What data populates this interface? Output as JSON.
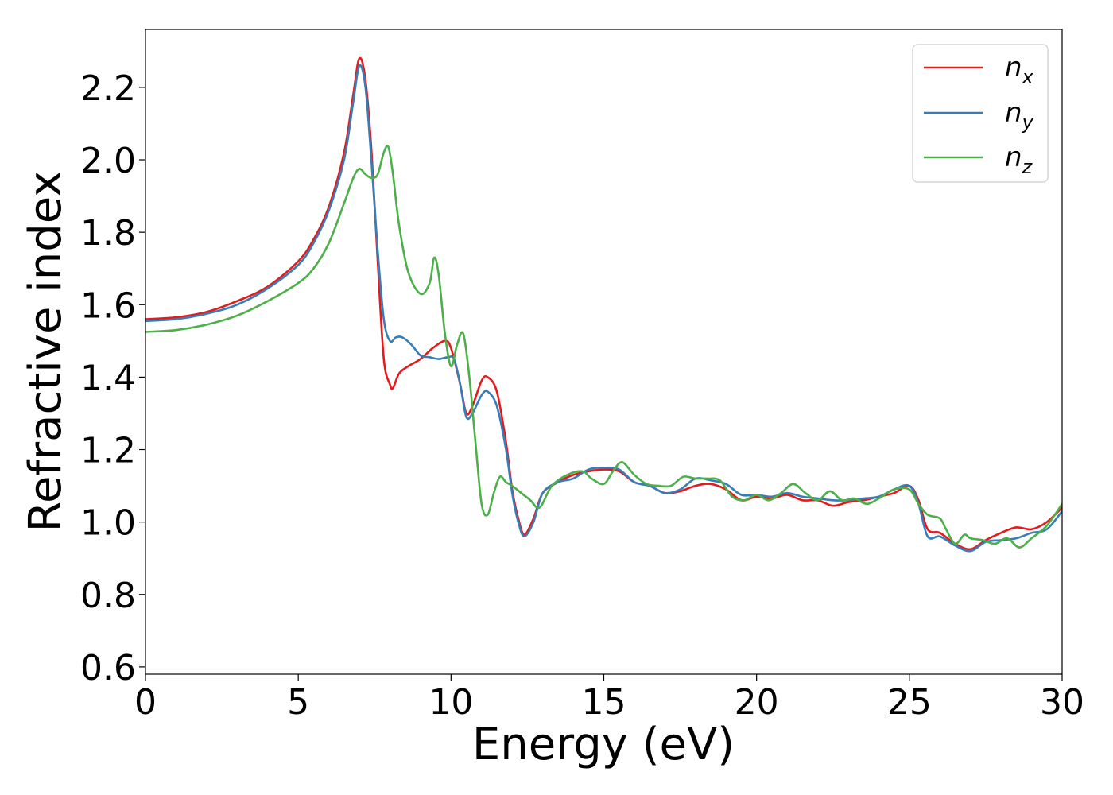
{
  "chart_data": {
    "type": "line",
    "title": "",
    "xlabel": "Energy (eV)",
    "ylabel": "Refractive index",
    "xlim": [
      0,
      30
    ],
    "ylim": [
      0.58,
      2.36
    ],
    "xticks": [
      0,
      5,
      10,
      15,
      20,
      25,
      30
    ],
    "yticks": [
      0.6,
      0.8,
      1.0,
      1.2,
      1.4,
      1.6,
      1.8,
      2.0,
      2.2
    ],
    "xtick_labels": [
      "0",
      "5",
      "10",
      "15",
      "20",
      "25",
      "30"
    ],
    "ytick_labels": [
      "0.6",
      "0.8",
      "1.0",
      "1.2",
      "1.4",
      "1.6",
      "1.8",
      "2.0",
      "2.2"
    ],
    "grid": false,
    "legend_position": "top-right",
    "series": [
      {
        "name": "n_x",
        "label_main": "n",
        "label_sub": "x",
        "color": "#e41a1c",
        "x": [
          0,
          1,
          2,
          3,
          4,
          5,
          5.5,
          6,
          6.5,
          6.8,
          7.0,
          7.2,
          7.4,
          7.6,
          7.8,
          8.0,
          8.1,
          8.3,
          8.6,
          9.0,
          9.4,
          9.8,
          10.0,
          10.3,
          10.5,
          10.7,
          11.0,
          11.2,
          11.5,
          11.8,
          12.0,
          12.2,
          12.4,
          12.7,
          13.0,
          13.5,
          14.0,
          14.5,
          15.0,
          15.5,
          16.0,
          16.5,
          17.0,
          17.5,
          18.0,
          18.5,
          19.0,
          19.5,
          20.0,
          20.5,
          21.0,
          21.5,
          22.0,
          22.5,
          23.0,
          23.5,
          24.0,
          24.5,
          25.0,
          25.3,
          25.6,
          26.0,
          26.5,
          27.0,
          27.5,
          28.0,
          28.5,
          29.0,
          29.5,
          30.0
        ],
        "y": [
          1.56,
          1.565,
          1.58,
          1.61,
          1.65,
          1.72,
          1.78,
          1.87,
          2.02,
          2.18,
          2.28,
          2.22,
          2.02,
          1.72,
          1.45,
          1.38,
          1.37,
          1.41,
          1.43,
          1.45,
          1.48,
          1.5,
          1.48,
          1.38,
          1.3,
          1.32,
          1.39,
          1.4,
          1.36,
          1.22,
          1.09,
          1.01,
          0.965,
          1.01,
          1.08,
          1.11,
          1.13,
          1.14,
          1.145,
          1.14,
          1.11,
          1.1,
          1.08,
          1.085,
          1.1,
          1.105,
          1.09,
          1.06,
          1.07,
          1.065,
          1.075,
          1.06,
          1.06,
          1.045,
          1.055,
          1.06,
          1.07,
          1.08,
          1.1,
          1.06,
          0.98,
          0.97,
          0.94,
          0.925,
          0.95,
          0.97,
          0.985,
          0.98,
          1.0,
          1.04
        ]
      },
      {
        "name": "n_y",
        "label_main": "n",
        "label_sub": "y",
        "color": "#377eb8",
        "x": [
          0,
          1,
          2,
          3,
          4,
          5,
          5.5,
          6,
          6.5,
          6.8,
          7.0,
          7.2,
          7.4,
          7.6,
          7.8,
          8.0,
          8.2,
          8.4,
          8.7,
          9.0,
          9.3,
          9.6,
          9.9,
          10.1,
          10.3,
          10.5,
          10.7,
          11.0,
          11.2,
          11.5,
          11.8,
          12.0,
          12.2,
          12.4,
          12.7,
          13.0,
          13.5,
          14.0,
          14.5,
          15.0,
          15.5,
          16.0,
          16.5,
          17.0,
          17.5,
          18.0,
          18.5,
          19.0,
          19.5,
          20.0,
          20.5,
          21.0,
          21.5,
          22.0,
          22.5,
          23.0,
          23.5,
          24.0,
          24.5,
          25.0,
          25.3,
          25.6,
          26.0,
          26.5,
          27.0,
          27.5,
          28.0,
          28.5,
          29.0,
          29.5,
          30.0
        ],
        "y": [
          1.555,
          1.56,
          1.575,
          1.6,
          1.645,
          1.71,
          1.77,
          1.86,
          2.0,
          2.16,
          2.26,
          2.2,
          1.99,
          1.75,
          1.56,
          1.5,
          1.51,
          1.51,
          1.49,
          1.46,
          1.455,
          1.45,
          1.455,
          1.45,
          1.38,
          1.29,
          1.3,
          1.35,
          1.36,
          1.32,
          1.2,
          1.08,
          1.0,
          0.96,
          1.0,
          1.08,
          1.11,
          1.12,
          1.145,
          1.15,
          1.145,
          1.11,
          1.1,
          1.08,
          1.09,
          1.12,
          1.115,
          1.105,
          1.075,
          1.075,
          1.07,
          1.08,
          1.07,
          1.065,
          1.06,
          1.06,
          1.065,
          1.07,
          1.09,
          1.1,
          1.05,
          0.96,
          0.96,
          0.935,
          0.92,
          0.945,
          0.95,
          0.955,
          0.97,
          0.98,
          1.03
        ]
      },
      {
        "name": "n_z",
        "label_main": "n",
        "label_sub": "z",
        "color": "#4daf4a",
        "x": [
          0,
          1,
          2,
          3,
          4,
          5,
          5.5,
          6,
          6.5,
          6.8,
          7.0,
          7.2,
          7.4,
          7.6,
          7.8,
          7.95,
          8.1,
          8.3,
          8.6,
          9.0,
          9.3,
          9.45,
          9.6,
          9.8,
          10.0,
          10.2,
          10.4,
          10.6,
          10.8,
          11.0,
          11.2,
          11.4,
          11.6,
          11.8,
          12.0,
          12.3,
          12.6,
          12.9,
          13.3,
          13.8,
          14.3,
          14.6,
          15.0,
          15.3,
          15.6,
          16.0,
          16.4,
          16.8,
          17.2,
          17.6,
          18.0,
          18.4,
          18.8,
          19.2,
          19.6,
          20.0,
          20.4,
          20.8,
          21.2,
          21.6,
          22.0,
          22.4,
          22.8,
          23.2,
          23.6,
          24.0,
          24.5,
          25.0,
          25.3,
          25.6,
          26.0,
          26.2,
          26.5,
          26.8,
          27.0,
          27.4,
          27.8,
          28.2,
          28.6,
          29.0,
          29.5,
          30.0
        ],
        "y": [
          1.525,
          1.53,
          1.545,
          1.57,
          1.61,
          1.66,
          1.7,
          1.77,
          1.88,
          1.95,
          1.975,
          1.96,
          1.95,
          1.96,
          2.02,
          2.035,
          1.96,
          1.82,
          1.69,
          1.63,
          1.66,
          1.73,
          1.68,
          1.52,
          1.43,
          1.49,
          1.52,
          1.4,
          1.22,
          1.05,
          1.02,
          1.08,
          1.125,
          1.11,
          1.1,
          1.08,
          1.06,
          1.04,
          1.1,
          1.13,
          1.14,
          1.12,
          1.105,
          1.14,
          1.165,
          1.13,
          1.105,
          1.1,
          1.1,
          1.125,
          1.12,
          1.12,
          1.115,
          1.07,
          1.06,
          1.075,
          1.06,
          1.08,
          1.105,
          1.08,
          1.06,
          1.085,
          1.06,
          1.065,
          1.05,
          1.065,
          1.09,
          1.09,
          1.05,
          1.02,
          1.01,
          0.98,
          0.94,
          0.965,
          0.955,
          0.95,
          0.94,
          0.955,
          0.93,
          0.955,
          0.99,
          1.05
        ]
      }
    ]
  }
}
